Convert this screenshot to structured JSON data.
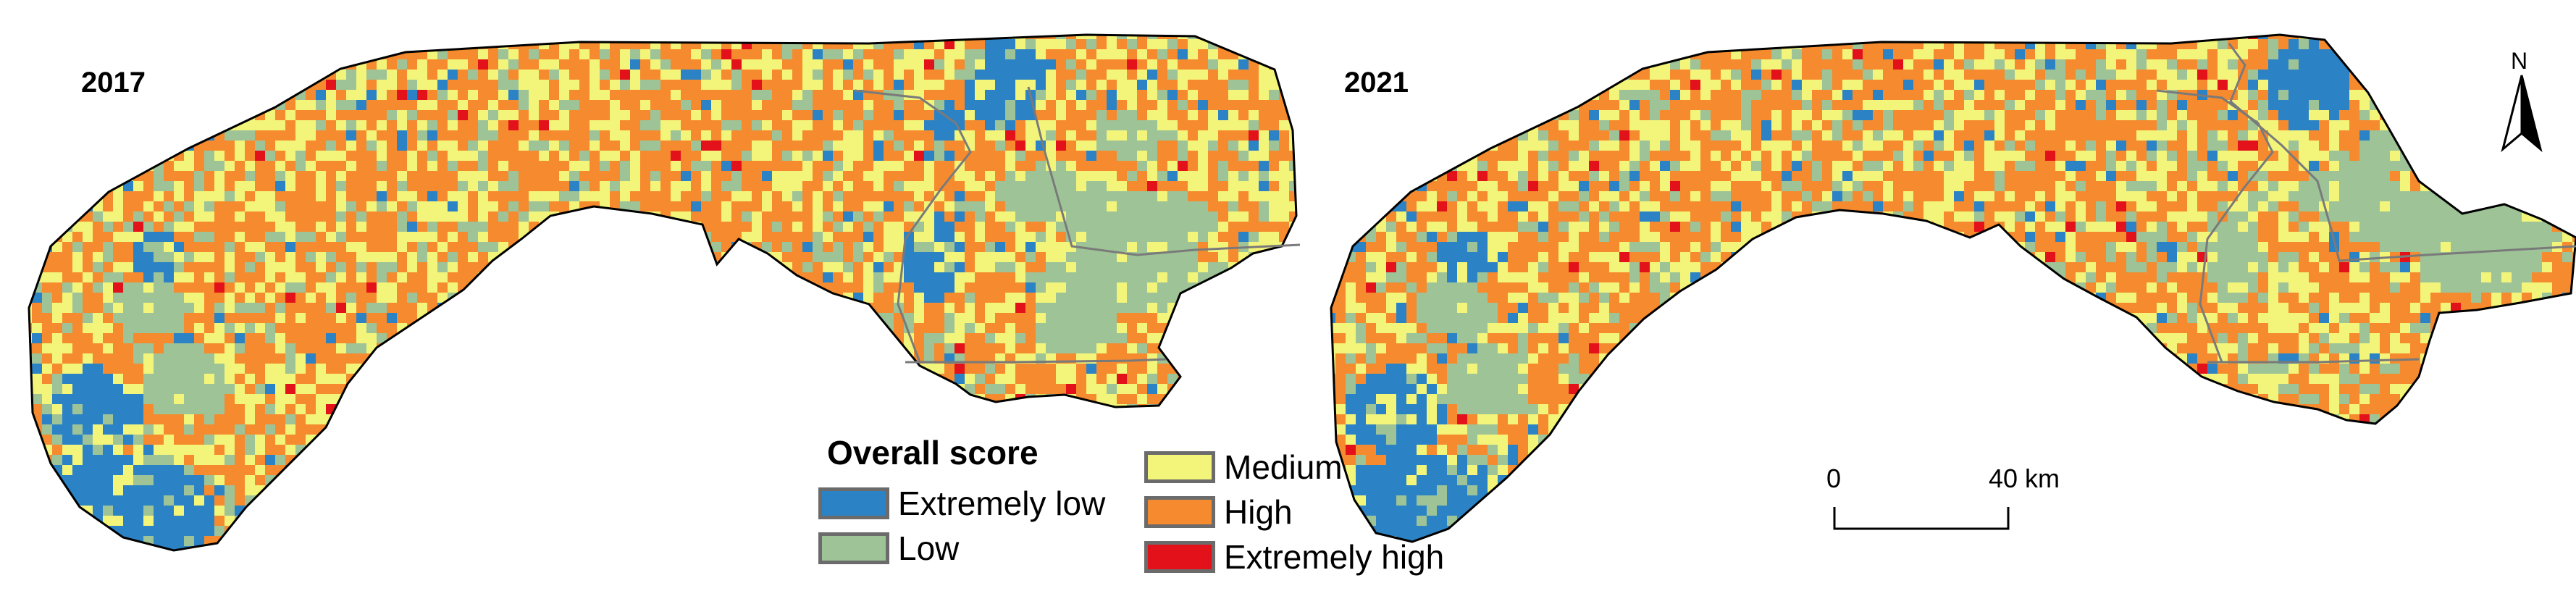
{
  "panels": [
    {
      "year_label": "2017"
    },
    {
      "year_label": "2021"
    }
  ],
  "legend": {
    "title": "Overall score",
    "items": [
      {
        "label": "Extremely low",
        "color": "#2b83c6"
      },
      {
        "label": "Low",
        "color": "#9dc397"
      },
      {
        "label": "Medium",
        "color": "#f3f57a"
      },
      {
        "label": "High",
        "color": "#f58b2e"
      },
      {
        "label": "Extremely high",
        "color": "#e3121a"
      }
    ]
  },
  "scale_bar": {
    "start_label": "0",
    "end_label": "40 km"
  },
  "north_arrow": {
    "letter": "N",
    "icon": "north-arrow-icon"
  }
}
